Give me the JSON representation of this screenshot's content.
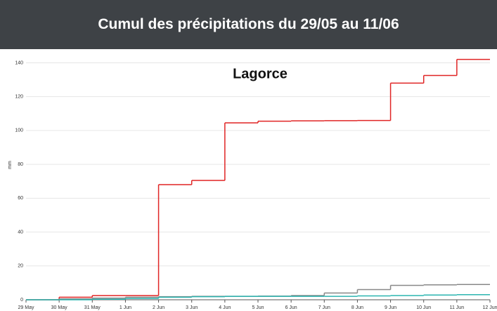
{
  "header": {
    "title": "Cumul des précipitations du 29/05 au 11/06"
  },
  "chart_data": {
    "type": "step",
    "title": "Lagorce",
    "y_label": "mm",
    "x": [
      0,
      1,
      2,
      3,
      4,
      5,
      6,
      7,
      8,
      9,
      10,
      11,
      12,
      13,
      14
    ],
    "xlim": [
      0,
      14
    ],
    "xticks": [
      {
        "value": 0,
        "label": "29 May"
      },
      {
        "value": 1,
        "label": "30 May"
      },
      {
        "value": 2,
        "label": "31 May"
      },
      {
        "value": 3,
        "label": "1 Jun"
      },
      {
        "value": 4,
        "label": "2 Jun"
      },
      {
        "value": 5,
        "label": "3 Jun"
      },
      {
        "value": 6,
        "label": "4 Jun"
      },
      {
        "value": 7,
        "label": "5 Jun"
      },
      {
        "value": 8,
        "label": "6 Jun"
      },
      {
        "value": 9,
        "label": "7 Jun"
      },
      {
        "value": 10,
        "label": "8 Jun"
      },
      {
        "value": 11,
        "label": "9 Jun"
      },
      {
        "value": 12,
        "label": "10 Jun"
      },
      {
        "value": 13,
        "label": "11 Jun"
      },
      {
        "value": 14,
        "label": "12 Jun"
      }
    ],
    "ylim": [
      0,
      146
    ],
    "yticks": [
      0,
      20,
      40,
      60,
      80,
      100,
      120,
      140
    ],
    "grid": true,
    "series": [
      {
        "color": "#e02424",
        "values": [
          0,
          1.5,
          2.5,
          2.5,
          68,
          70.5,
          104.5,
          105.5,
          105.7,
          105.8,
          105.9,
          128,
          132.5,
          142,
          142
        ]
      },
      {
        "color": "#888888",
        "values": [
          0,
          0.5,
          1,
          1.5,
          1.8,
          2,
          2,
          2.2,
          2.5,
          4,
          6,
          8.5,
          8.8,
          9,
          9
        ]
      },
      {
        "color": "#2bb5b0",
        "values": [
          0,
          0,
          0.3,
          0.8,
          1.5,
          1.8,
          2,
          2,
          2,
          2,
          2.3,
          2.5,
          2.8,
          3,
          3
        ]
      }
    ]
  }
}
